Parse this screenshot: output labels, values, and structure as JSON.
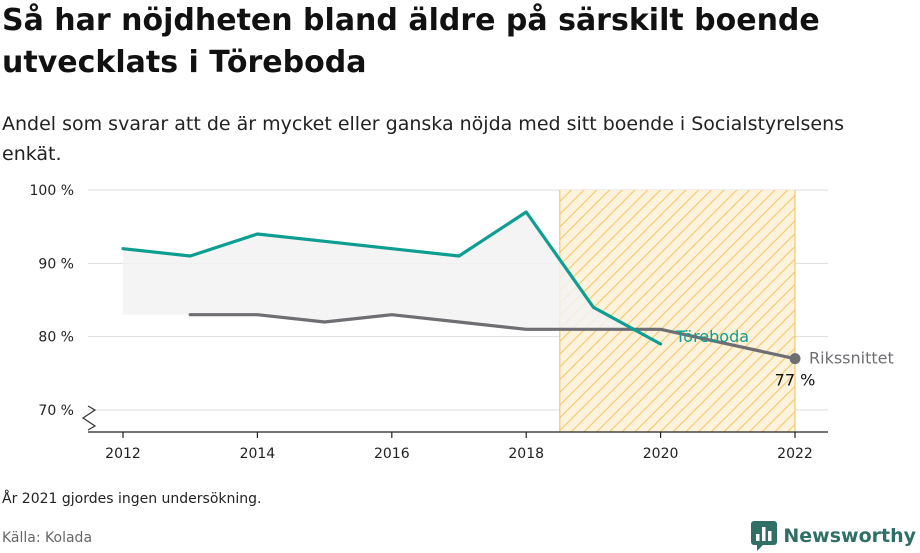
{
  "title": "Så har nöjdheten bland äldre på särskilt boende utvecklats i Töreboda",
  "subtitle": "Andel som svarar att de är mycket eller ganska nöjda med sitt boende i Socialstyrelsens enkät.",
  "footnote": "År 2021 gjordes ingen undersökning.",
  "source": "Källa: Kolada",
  "brand": "Newsworthy",
  "chart_data": {
    "type": "line",
    "x_ticks": [
      2012,
      2014,
      2016,
      2018,
      2020,
      2022
    ],
    "y_ticks": [
      70,
      80,
      90,
      100
    ],
    "y_tick_labels": [
      "70 %",
      "80 %",
      "90 %",
      "100 %"
    ],
    "xlim": [
      2011.5,
      2022.5
    ],
    "ylim": [
      68,
      100
    ],
    "y_axis_break": true,
    "grid": true,
    "highlight_span": [
      2018.5,
      2022
    ],
    "series": [
      {
        "name": "Töreboda",
        "color": "#0e9e91",
        "x": [
          2012,
          2013,
          2014,
          2015,
          2016,
          2017,
          2018,
          2019,
          2020
        ],
        "y": [
          92,
          91,
          94,
          93,
          92,
          91,
          97,
          84,
          79
        ]
      },
      {
        "name": "Rikssnittet",
        "color": "#6e6e73",
        "x": [
          2013,
          2014,
          2015,
          2016,
          2017,
          2018,
          2019,
          2020,
          2022
        ],
        "y": [
          83,
          83,
          82,
          83,
          82,
          81,
          81,
          81,
          77
        ],
        "end_label": "77 %"
      }
    ],
    "colors": {
      "highlight": "#f5c76a",
      "grid": "#dddddd",
      "area": "#f2f2f2"
    }
  }
}
